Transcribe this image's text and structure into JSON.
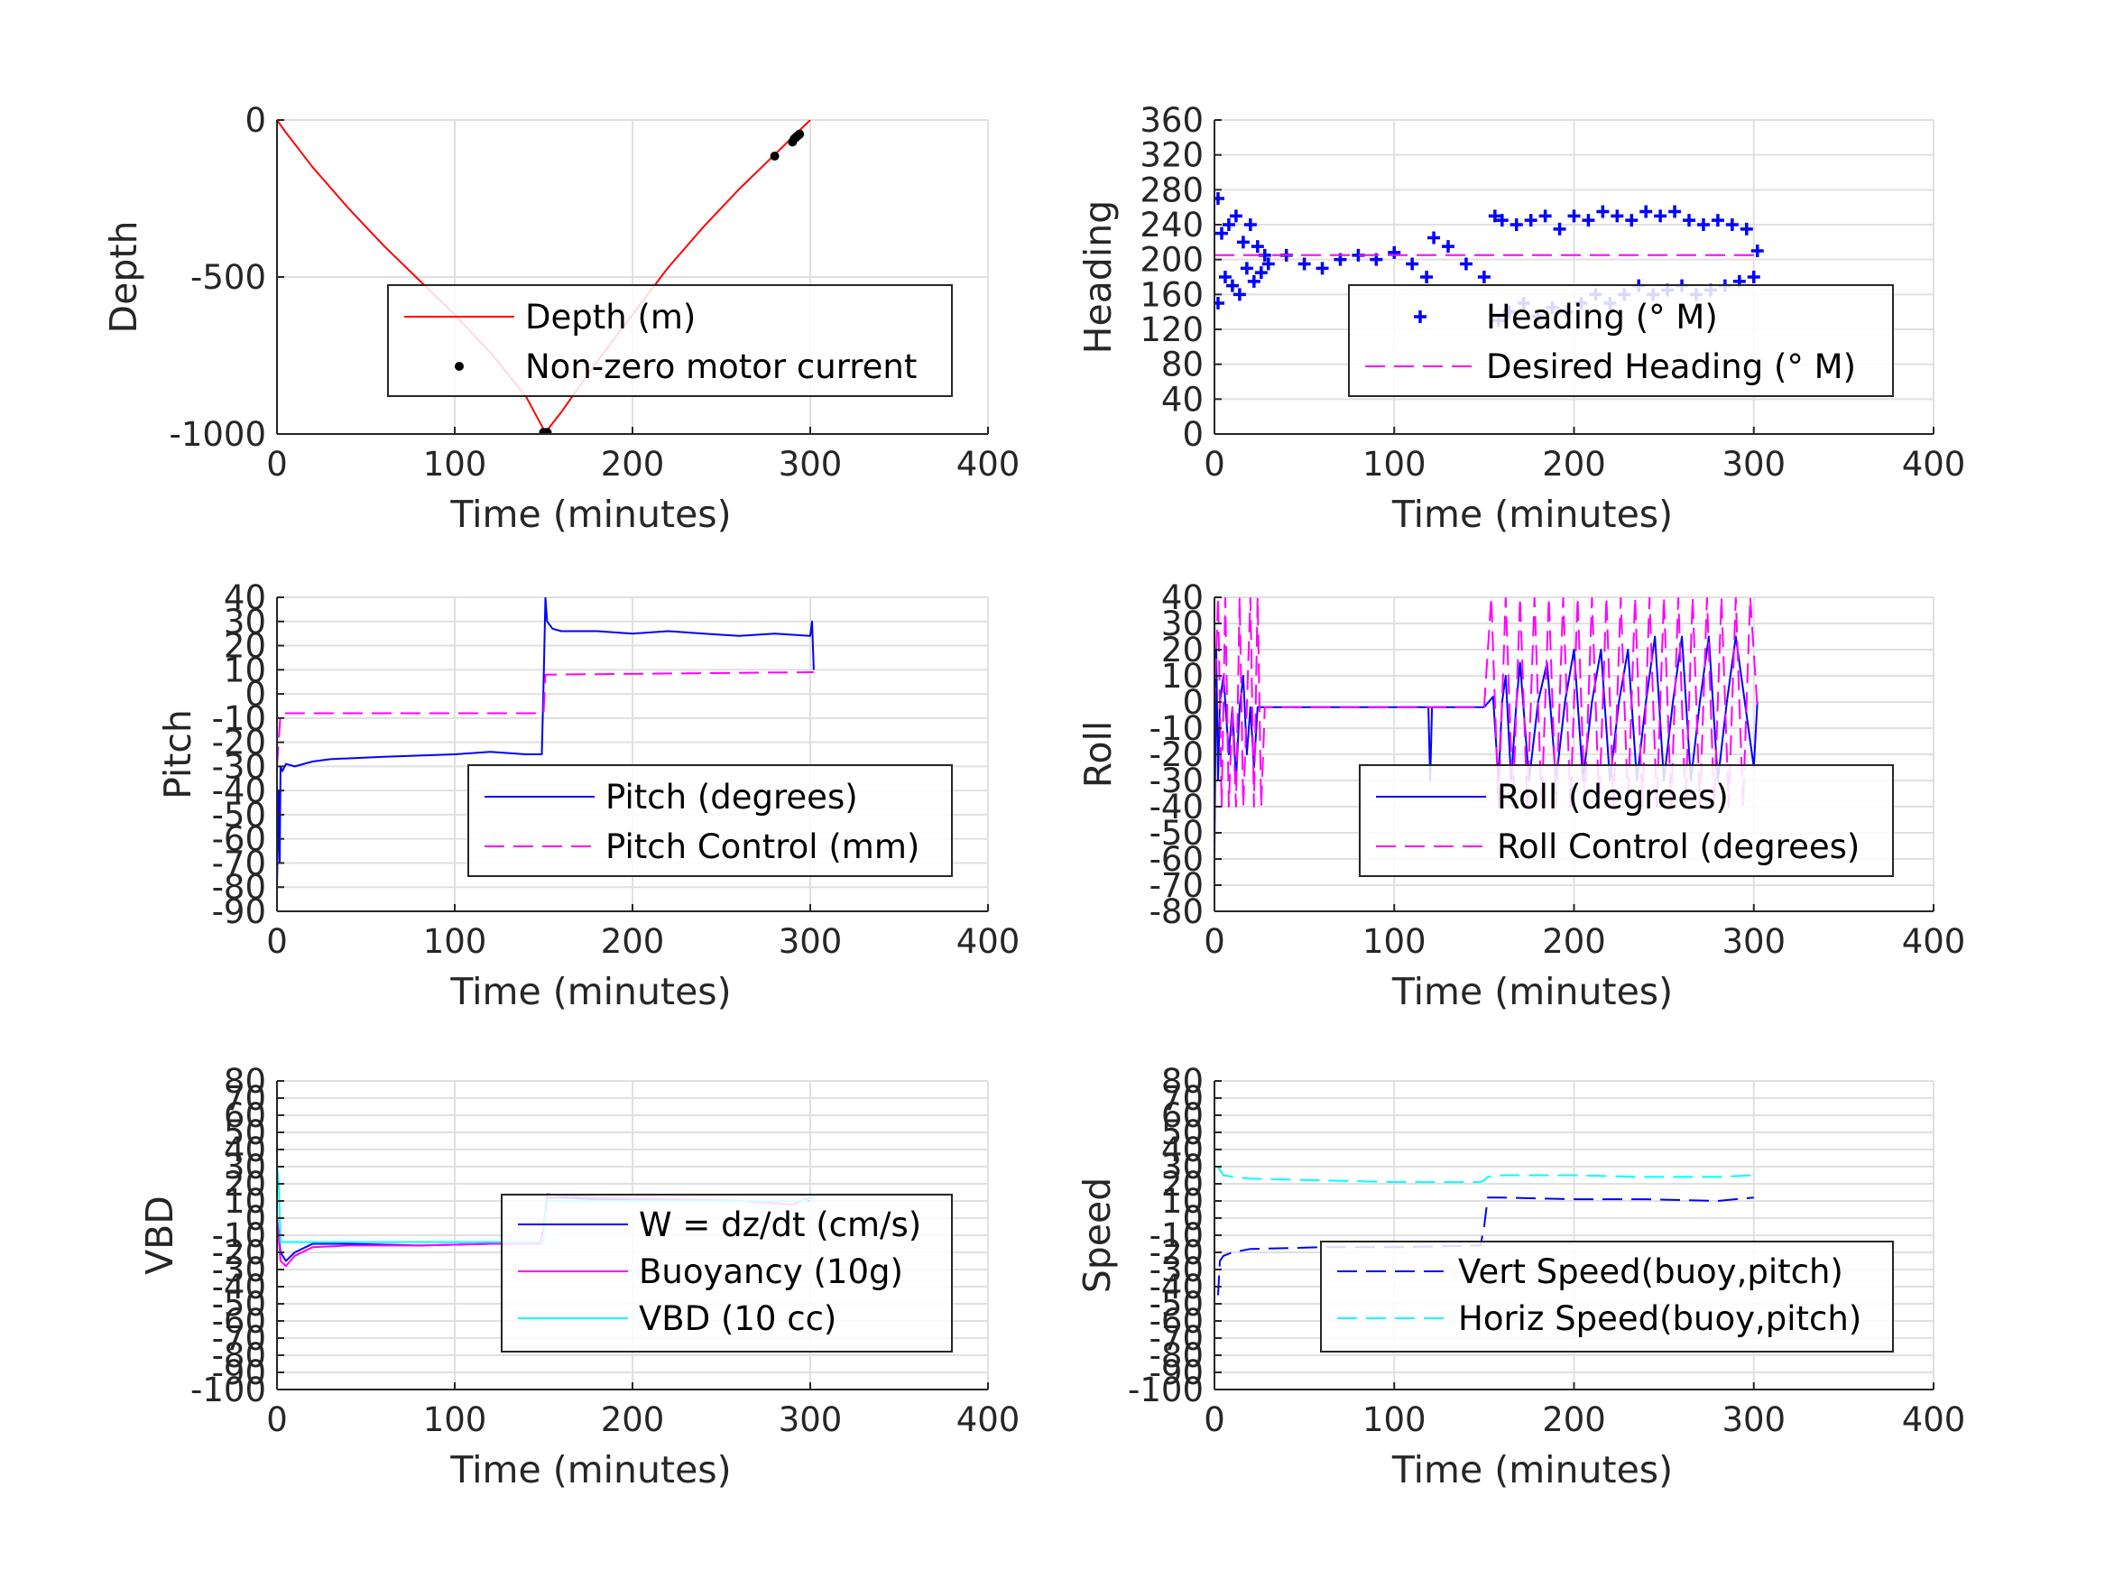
{
  "colors": {
    "grid": "#e0e0e0",
    "axis": "#262626",
    "red": "#ff0000",
    "blue": "#0000ff",
    "magenta": "#ff00ff",
    "cyan": "#00ffff",
    "black": "#000000"
  },
  "chart_data": [
    {
      "id": "depth",
      "type": "line",
      "xlabel": "Time (minutes)",
      "ylabel": "Depth",
      "xlim": [
        0,
        400
      ],
      "ylim": [
        -1000,
        0
      ],
      "xticks": [
        0,
        100,
        200,
        300,
        400
      ],
      "yticks": [
        -1000,
        -500,
        0
      ],
      "grid": true,
      "legend_position": "lower-right",
      "series": [
        {
          "name": "Depth (m)",
          "color": "#ff0000",
          "style": "solid",
          "x": [
            0,
            5,
            20,
            40,
            60,
            80,
            100,
            120,
            140,
            150,
            151,
            160,
            180,
            200,
            220,
            240,
            260,
            280,
            300
          ],
          "y": [
            0,
            -40,
            -150,
            -280,
            -400,
            -510,
            -620,
            -740,
            -880,
            -985,
            -995,
            -930,
            -770,
            -620,
            -470,
            -340,
            -220,
            -110,
            0
          ]
        },
        {
          "name": "Non-zero motor current",
          "color": "#000000",
          "style": "marker-dot",
          "x": [
            150,
            151,
            152,
            280,
            290,
            291,
            292,
            293,
            294
          ],
          "y": [
            -995,
            -1000,
            -995,
            -115,
            -70,
            -60,
            -55,
            -50,
            -45
          ]
        }
      ]
    },
    {
      "id": "heading",
      "type": "line",
      "xlabel": "Time (minutes)",
      "ylabel": "Heading",
      "xlim": [
        0,
        400
      ],
      "ylim": [
        0,
        360
      ],
      "xticks": [
        0,
        100,
        200,
        300,
        400
      ],
      "yticks": [
        0,
        40,
        80,
        120,
        160,
        200,
        240,
        280,
        320,
        360
      ],
      "grid": true,
      "legend_position": "lower-right",
      "series": [
        {
          "name": "Heading (° M)",
          "color": "#0000ff",
          "style": "marker-plus",
          "x": [
            2,
            2,
            4,
            6,
            8,
            10,
            12,
            14,
            16,
            18,
            20,
            22,
            24,
            26,
            28,
            30,
            40,
            50,
            60,
            70,
            80,
            90,
            100,
            110,
            118,
            122,
            130,
            140,
            150,
            156,
            158,
            160,
            164,
            168,
            172,
            176,
            180,
            184,
            188,
            192,
            196,
            200,
            204,
            208,
            212,
            216,
            220,
            224,
            228,
            232,
            236,
            240,
            244,
            248,
            252,
            256,
            260,
            264,
            268,
            272,
            276,
            280,
            284,
            288,
            292,
            296,
            300,
            302
          ],
          "y": [
            270,
            150,
            230,
            180,
            240,
            170,
            250,
            160,
            220,
            190,
            240,
            175,
            215,
            185,
            205,
            195,
            205,
            195,
            190,
            200,
            205,
            200,
            208,
            195,
            180,
            225,
            215,
            195,
            180,
            250,
            130,
            245,
            140,
            240,
            150,
            245,
            135,
            250,
            145,
            235,
            140,
            250,
            150,
            245,
            160,
            255,
            150,
            250,
            160,
            245,
            170,
            255,
            160,
            250,
            165,
            255,
            170,
            245,
            160,
            240,
            165,
            245,
            170,
            240,
            175,
            235,
            180,
            210
          ]
        },
        {
          "name": "Desired Heading (° M)",
          "color": "#ff00ff",
          "style": "dashed",
          "x": [
            0,
            300
          ],
          "y": [
            205,
            205
          ]
        }
      ]
    },
    {
      "id": "pitch",
      "type": "line",
      "xlabel": "Time (minutes)",
      "ylabel": "Pitch",
      "xlim": [
        0,
        400
      ],
      "ylim": [
        -90,
        40
      ],
      "xticks": [
        0,
        100,
        200,
        300,
        400
      ],
      "yticks": [
        -90,
        -80,
        -70,
        -60,
        -50,
        -40,
        -30,
        -20,
        -10,
        0,
        10,
        20,
        30,
        40
      ],
      "grid": true,
      "legend_position": "lower-right",
      "series": [
        {
          "name": "Pitch (degrees)",
          "color": "#0000ff",
          "style": "solid",
          "x": [
            0,
            1,
            1.5,
            2,
            3,
            5,
            10,
            20,
            30,
            60,
            100,
            120,
            140,
            149,
            150,
            151,
            152,
            155,
            160,
            180,
            200,
            220,
            240,
            260,
            280,
            300,
            301,
            302
          ],
          "y": [
            -80,
            -40,
            -70,
            -30,
            -32,
            -29,
            -30,
            -28,
            -27,
            -26,
            -25,
            -24,
            -25,
            -25,
            5,
            40,
            30,
            27,
            26,
            26,
            25,
            26,
            25,
            24,
            25,
            24,
            30,
            10
          ]
        },
        {
          "name": "Pitch Control (mm)",
          "color": "#ff00ff",
          "style": "dashed",
          "x": [
            0,
            2,
            3,
            150,
            151,
            152,
            300,
            302
          ],
          "y": [
            -30,
            -8,
            -8,
            -8,
            8,
            8,
            9,
            9
          ]
        }
      ]
    },
    {
      "id": "roll",
      "type": "line",
      "xlabel": "Time (minutes)",
      "ylabel": "Roll",
      "xlim": [
        0,
        400
      ],
      "ylim": [
        -80,
        40
      ],
      "xticks": [
        0,
        100,
        200,
        300,
        400
      ],
      "yticks": [
        -80,
        -70,
        -60,
        -50,
        -40,
        -30,
        -20,
        -10,
        0,
        10,
        20,
        30,
        40
      ],
      "grid": true,
      "legend_position": "lower-right",
      "series": [
        {
          "name": "Roll (degrees)",
          "color": "#0000ff",
          "style": "solid",
          "x": [
            0,
            1,
            2,
            3,
            5,
            8,
            10,
            12,
            14,
            16,
            18,
            20,
            22,
            24,
            26,
            30,
            60,
            100,
            119,
            120,
            121,
            150,
            155,
            158,
            160,
            162,
            165,
            168,
            170,
            175,
            180,
            185,
            190,
            195,
            200,
            205,
            210,
            215,
            220,
            225,
            230,
            235,
            240,
            245,
            250,
            255,
            260,
            265,
            270,
            275,
            280,
            285,
            290,
            300,
            302
          ],
          "y": [
            -60,
            20,
            -30,
            0,
            10,
            -20,
            -2,
            -30,
            -2,
            10,
            -20,
            -2,
            -25,
            -2,
            -2,
            -2,
            -2,
            -2,
            -2,
            -30,
            -2,
            -2,
            2,
            -30,
            0,
            10,
            -30,
            0,
            15,
            -30,
            0,
            15,
            -30,
            0,
            20,
            -30,
            0,
            20,
            -30,
            0,
            20,
            -30,
            0,
            25,
            -30,
            0,
            25,
            -30,
            0,
            25,
            -30,
            0,
            25,
            -25,
            0
          ]
        },
        {
          "name": "Roll Control (degrees)",
          "color": "#ff00ff",
          "style": "dashed",
          "x": [
            0,
            2,
            4,
            6,
            8,
            10,
            12,
            14,
            16,
            18,
            20,
            22,
            24,
            26,
            28,
            150,
            154,
            158,
            162,
            166,
            170,
            174,
            178,
            182,
            186,
            190,
            194,
            198,
            202,
            206,
            210,
            214,
            218,
            222,
            226,
            230,
            234,
            238,
            242,
            246,
            250,
            254,
            258,
            262,
            266,
            270,
            274,
            278,
            282,
            286,
            290,
            294,
            298,
            302
          ],
          "y": [
            -2,
            40,
            -40,
            40,
            -40,
            -2,
            -40,
            40,
            -40,
            -2,
            40,
            -40,
            40,
            -40,
            -2,
            -2,
            40,
            -40,
            40,
            -40,
            40,
            -40,
            40,
            -40,
            40,
            -40,
            40,
            -40,
            40,
            -40,
            40,
            -40,
            40,
            -40,
            40,
            -40,
            40,
            -40,
            40,
            -40,
            40,
            -40,
            40,
            -40,
            40,
            -40,
            40,
            -40,
            40,
            -40,
            40,
            -40,
            40,
            -2
          ]
        }
      ]
    },
    {
      "id": "vbd",
      "type": "line",
      "xlabel": "Time (minutes)",
      "ylabel": "VBD",
      "xlim": [
        0,
        400
      ],
      "ylim": [
        -100,
        80
      ],
      "xticks": [
        0,
        100,
        200,
        300,
        400
      ],
      "yticks": [
        -100,
        -90,
        -80,
        -70,
        -60,
        -50,
        -40,
        -30,
        -20,
        -10,
        0,
        10,
        20,
        30,
        40,
        50,
        60,
        70,
        80
      ],
      "grid": true,
      "legend_position": "lower-right",
      "series": [
        {
          "name": "W = dz/dt (cm/s)",
          "color": "#0000ff",
          "style": "solid",
          "x": [
            0,
            2,
            5,
            10,
            20,
            40,
            80,
            120,
            148,
            150,
            152,
            160,
            180,
            220,
            260,
            290,
            300
          ],
          "y": [
            0,
            -20,
            -25,
            -20,
            -15,
            -15,
            -16,
            -15,
            -15,
            -5,
            12,
            12,
            11,
            11,
            10,
            10,
            10
          ]
        },
        {
          "name": "Buoyancy (10g)",
          "color": "#ff00ff",
          "style": "solid",
          "x": [
            0,
            2,
            5,
            10,
            20,
            40,
            80,
            120,
            148,
            150,
            152,
            160,
            180,
            220,
            260,
            290,
            300
          ],
          "y": [
            0,
            -25,
            -28,
            -22,
            -17,
            -16,
            -16,
            -15,
            -15,
            -5,
            14,
            13,
            12,
            11,
            10,
            8,
            12
          ]
        },
        {
          "name": "VBD (10 cc)",
          "color": "#00ffff",
          "style": "solid",
          "x": [
            0,
            1,
            2,
            5,
            150,
            151,
            152,
            298,
            300,
            302
          ],
          "y": [
            30,
            20,
            -14,
            -14,
            -14,
            10,
            10,
            10,
            14,
            10
          ]
        }
      ]
    },
    {
      "id": "speed",
      "type": "line",
      "xlabel": "Time (minutes)",
      "ylabel": "Speed",
      "xlim": [
        0,
        400
      ],
      "ylim": [
        -100,
        80
      ],
      "xticks": [
        0,
        100,
        200,
        300,
        400
      ],
      "yticks": [
        -100,
        -90,
        -80,
        -70,
        -60,
        -50,
        -40,
        -30,
        -20,
        -10,
        0,
        10,
        20,
        30,
        40,
        50,
        60,
        70,
        80
      ],
      "grid": true,
      "legend_position": "lower-right",
      "series": [
        {
          "name": "Vert Speed(buoy,pitch)",
          "color": "#0000ff",
          "style": "dashed",
          "x": [
            2,
            3,
            5,
            10,
            20,
            60,
            100,
            148,
            150,
            152,
            160,
            200,
            240,
            280,
            300
          ],
          "y": [
            -45,
            -25,
            -22,
            -20,
            -18,
            -17,
            -17,
            -16,
            -5,
            12,
            12,
            11,
            11,
            10,
            12
          ]
        },
        {
          "name": "Horiz Speed(buoy,pitch)",
          "color": "#00ffff",
          "style": "dashed",
          "x": [
            2,
            3,
            5,
            10,
            20,
            60,
            100,
            148,
            150,
            152,
            160,
            200,
            240,
            280,
            300,
            302
          ],
          "y": [
            30,
            28,
            25,
            24,
            23,
            22,
            21,
            21,
            22,
            24,
            25,
            25,
            24,
            24,
            25,
            28
          ]
        }
      ]
    }
  ]
}
